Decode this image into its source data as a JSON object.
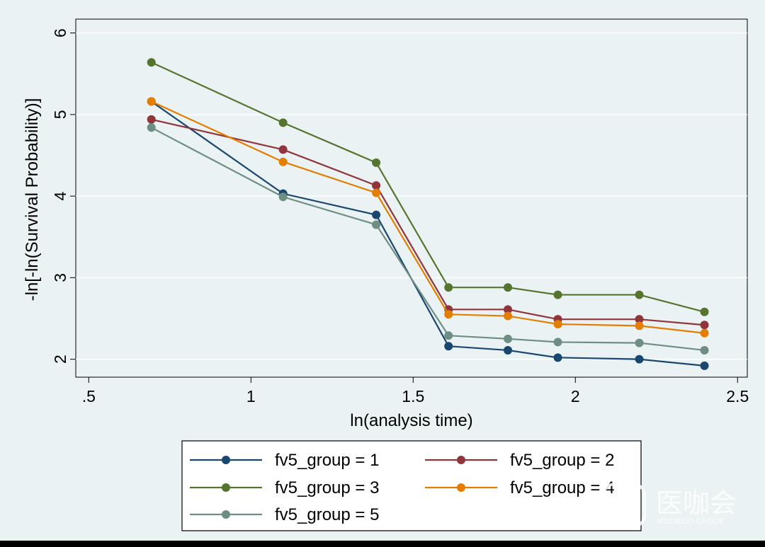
{
  "chart_data": {
    "type": "line",
    "title": "",
    "xlabel": "ln(analysis time)",
    "ylabel": "-ln[-ln(Survival Probability)]",
    "xlim": [
      0.46,
      2.53
    ],
    "ylim": [
      1.78,
      6.17
    ],
    "x_ticks": [
      0.5,
      1,
      1.5,
      2,
      2.5
    ],
    "x_tick_labels": [
      ".5",
      "1",
      "1.5",
      "2",
      "2.5"
    ],
    "y_ticks": [
      2,
      3,
      4,
      5,
      6
    ],
    "y_tick_labels": [
      "2",
      "3",
      "4",
      "5",
      "6"
    ],
    "grid": "horizontal",
    "legend_position": "bottom",
    "x": [
      0.693,
      1.099,
      1.386,
      1.609,
      1.792,
      1.946,
      2.197,
      2.398
    ],
    "series": [
      {
        "name": "fv5_group = 1",
        "color": "#1a476f",
        "values": [
          5.16,
          4.03,
          3.77,
          2.16,
          2.11,
          2.02,
          2.0,
          1.92
        ]
      },
      {
        "name": "fv5_group = 2",
        "color": "#90353b",
        "values": [
          4.94,
          4.57,
          4.13,
          2.61,
          2.61,
          2.49,
          2.49,
          2.42
        ]
      },
      {
        "name": "fv5_group = 3",
        "color": "#55752f",
        "values": [
          5.64,
          4.9,
          4.41,
          2.88,
          2.88,
          2.79,
          2.79,
          2.58
        ]
      },
      {
        "name": "fv5_group = 4",
        "color": "#e37e00",
        "values": [
          5.16,
          4.42,
          4.04,
          2.55,
          2.53,
          2.43,
          2.41,
          2.32
        ]
      },
      {
        "name": "fv5_group = 5",
        "color": "#6e8e84",
        "values": [
          4.84,
          3.99,
          3.65,
          2.29,
          2.25,
          2.21,
          2.2,
          2.11
        ]
      }
    ]
  },
  "watermark": {
    "text": "医咖会",
    "subtext": "MEDIECO GROUP"
  }
}
